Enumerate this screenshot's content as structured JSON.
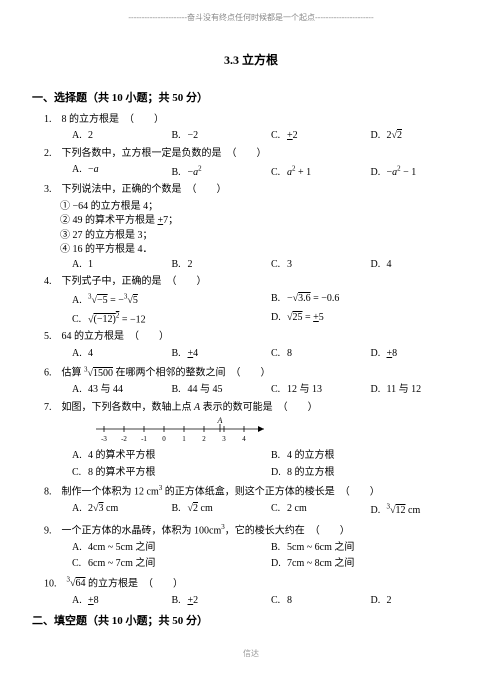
{
  "topnote": "----------------------奋斗没有终点任何时候都是一个起点----------------------",
  "title": "3.3 立方根",
  "section1": "一、选择题（共 10 小题；共 50 分）",
  "q1": {
    "stem": "1.　8 的立方根是　（　　）",
    "A": "2",
    "B": "−2",
    "C": "±2",
    "D": "2√2"
  },
  "q2": {
    "stem": "2.　下列各数中，立方根一定是负数的是　（　　）",
    "A": "−a",
    "B": "−a²",
    "C": "a² + 1",
    "D": "−a² − 1"
  },
  "q3": {
    "stem": "3.　下列说法中，正确的个数是　（　　）",
    "s1": "① −64 的立方根是 4；",
    "s2": "② 49 的算术平方根是 ±7；",
    "s3": "③ 27 的立方根是 3；",
    "s4": "④ 16 的平方根是 4．",
    "A": "1",
    "B": "2",
    "C": "3",
    "D": "4"
  },
  "q4": {
    "stem": "4.　下列式子中，正确的是　（　　）",
    "A": "³√−5 = −³√5",
    "B": "−√3.6 = −0.6",
    "C": "√(−12)² = −12",
    "D": "√25 = ±5"
  },
  "q5": {
    "stem": "5.　64 的立方根是　（　　）",
    "A": "4",
    "B": "±4",
    "C": "8",
    "D": "±8"
  },
  "q6": {
    "stem": "6.　估算 ³√1500 在哪两个相邻的整数之间　（　　）",
    "A": "43 与 44",
    "B": "44 与 45",
    "C": "12 与 13",
    "D": "11 与 12"
  },
  "q7": {
    "stem": "7.　如图，下列各数中，数轴上点 A 表示的数可能是　（　　）",
    "A": "4 的算术平方根",
    "B": "4 的立方根",
    "C": "8 的算术平方根",
    "D": "8 的立方根",
    "ticks": [
      "-3",
      "-2",
      "-1",
      "0",
      "1",
      "2",
      "3",
      "4"
    ],
    "Apos": 2.8
  },
  "q8": {
    "stem": "8.　制作一个体积为 12 cm³ 的正方体纸盒，则这个正方体的棱长是　（　　）",
    "A": "2√3 cm",
    "B": "√2 cm",
    "C": "2 cm",
    "D": "³√12 cm"
  },
  "q9": {
    "stem": "9.　一个正方体的水晶砖，体积为 100cm³，它的棱长大约在　（　　）",
    "A": "4cm ~ 5cm 之间",
    "B": "5cm ~ 6cm 之间",
    "C": "6cm ~ 7cm 之间",
    "D": "7cm ~ 8cm 之间"
  },
  "q10": {
    "stem": "10.　³√64 的立方根是　（　　）",
    "A": "±8",
    "B": "±2",
    "C": "8",
    "D": "2"
  },
  "section2": "二、填空题（共 10 小题；共 50 分）",
  "footer": "信达"
}
